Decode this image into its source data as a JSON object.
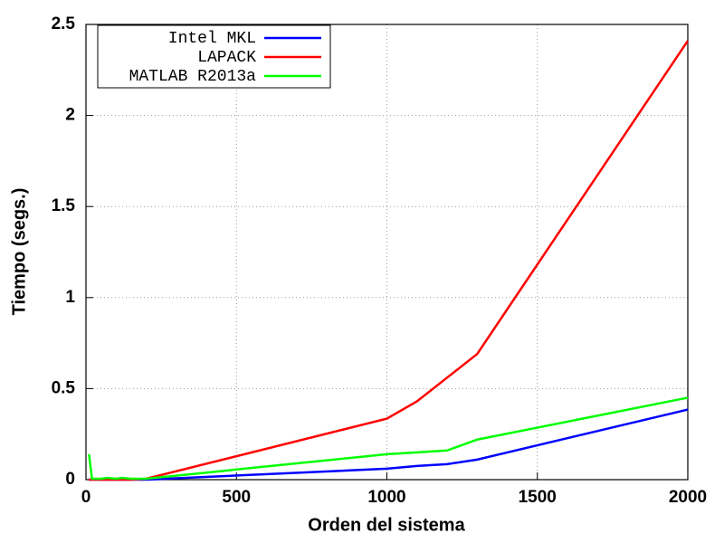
{
  "chart_data": {
    "type": "line",
    "xlabel": "Orden del sistema",
    "ylabel": "Tiempo (segs.)",
    "x": [
      10,
      20,
      50,
      70,
      100,
      120,
      150,
      200,
      1000,
      1100,
      1200,
      1300,
      2000
    ],
    "series": [
      {
        "name": "Intel MKL",
        "color": "#0000ff",
        "values": [
          0,
          0,
          0,
          0,
          0,
          0,
          0,
          0,
          0.06,
          0.075,
          0.085,
          0.11,
          0.385
        ]
      },
      {
        "name": "LAPACK",
        "color": "#ff0000",
        "values": [
          0,
          0,
          0,
          0,
          0,
          0,
          0,
          0.005,
          0.335,
          0.43,
          0.56,
          0.69,
          2.41
        ]
      },
      {
        "name": "MATLAB R2013a",
        "color": "#00ff00",
        "values": [
          0.14,
          0.005,
          0.005,
          0.01,
          0.005,
          0.01,
          0.005,
          0.005,
          0.14,
          0.15,
          0.16,
          0.22,
          0.45
        ]
      }
    ],
    "xlim": [
      0,
      2000
    ],
    "xticks": [
      0,
      500,
      1000,
      1500,
      2000
    ],
    "ylim": [
      0,
      2.5
    ],
    "yticks": [
      0,
      0.5,
      1,
      1.5,
      2,
      2.5
    ],
    "grid": true,
    "legend": "top-left"
  }
}
